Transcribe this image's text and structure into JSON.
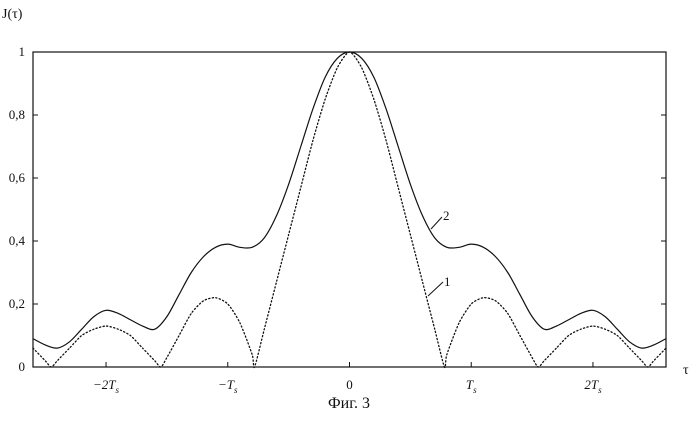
{
  "figure": {
    "caption": "Фиг. 3"
  },
  "chart_data": {
    "type": "line",
    "ylabel": "J(τ)",
    "xlabel": "τ",
    "xlim": [
      -2.6,
      2.6
    ],
    "ylim": [
      0,
      1
    ],
    "x_unit": "T_s",
    "x_ticks": [
      {
        "value": -2,
        "label": "−2T",
        "sub": "s"
      },
      {
        "value": -1,
        "label": "−T",
        "sub": "s"
      },
      {
        "value": 0,
        "label": "0",
        "sub": ""
      },
      {
        "value": 1,
        "label": "T",
        "sub": "s"
      },
      {
        "value": 2,
        "label": "2T",
        "sub": "s"
      }
    ],
    "y_ticks": [
      {
        "value": 0,
        "label": "0"
      },
      {
        "value": 0.2,
        "label": "0,2"
      },
      {
        "value": 0.4,
        "label": "0,4"
      },
      {
        "value": 0.6,
        "label": "0,6"
      },
      {
        "value": 0.8,
        "label": "0,8"
      },
      {
        "value": 1,
        "label": "1"
      }
    ],
    "grid": false,
    "series": [
      {
        "name": "2",
        "style": "solid",
        "x": [
          -2.6,
          -2.5,
          -2.4,
          -2.3,
          -2.2,
          -2.1,
          -2.0,
          -1.9,
          -1.8,
          -1.7,
          -1.6,
          -1.5,
          -1.4,
          -1.3,
          -1.2,
          -1.1,
          -1.0,
          -0.9,
          -0.8,
          -0.7,
          -0.6,
          -0.5,
          -0.4,
          -0.3,
          -0.2,
          -0.1,
          0.0,
          0.1,
          0.2,
          0.3,
          0.4,
          0.5,
          0.6,
          0.7,
          0.8,
          0.9,
          1.0,
          1.1,
          1.2,
          1.3,
          1.4,
          1.5,
          1.6,
          1.7,
          1.8,
          1.9,
          2.0,
          2.1,
          2.2,
          2.3,
          2.4,
          2.5,
          2.6
        ],
        "y": [
          0.09,
          0.07,
          0.06,
          0.08,
          0.12,
          0.16,
          0.18,
          0.17,
          0.15,
          0.13,
          0.12,
          0.16,
          0.23,
          0.3,
          0.35,
          0.38,
          0.39,
          0.38,
          0.38,
          0.41,
          0.48,
          0.58,
          0.7,
          0.82,
          0.92,
          0.98,
          1.0,
          0.98,
          0.92,
          0.82,
          0.7,
          0.58,
          0.48,
          0.41,
          0.38,
          0.38,
          0.39,
          0.38,
          0.35,
          0.3,
          0.23,
          0.16,
          0.12,
          0.13,
          0.15,
          0.17,
          0.18,
          0.16,
          0.12,
          0.08,
          0.06,
          0.07,
          0.09
        ]
      },
      {
        "name": "1",
        "style": "dotted",
        "x": [
          -2.6,
          -2.5,
          -2.45,
          -2.4,
          -2.3,
          -2.2,
          -2.1,
          -2.0,
          -1.9,
          -1.8,
          -1.7,
          -1.6,
          -1.55,
          -1.5,
          -1.4,
          -1.3,
          -1.2,
          -1.1,
          -1.0,
          -0.9,
          -0.8,
          -0.78,
          -0.7,
          -0.6,
          -0.5,
          -0.4,
          -0.3,
          -0.2,
          -0.1,
          0.0,
          0.1,
          0.2,
          0.3,
          0.4,
          0.5,
          0.6,
          0.7,
          0.78,
          0.8,
          0.9,
          1.0,
          1.1,
          1.2,
          1.3,
          1.4,
          1.5,
          1.55,
          1.6,
          1.7,
          1.8,
          1.9,
          2.0,
          2.1,
          2.2,
          2.3,
          2.4,
          2.45,
          2.5,
          2.6
        ],
        "y": [
          0.06,
          0.02,
          0.0,
          0.02,
          0.06,
          0.1,
          0.12,
          0.13,
          0.12,
          0.1,
          0.06,
          0.02,
          0.0,
          0.03,
          0.1,
          0.17,
          0.21,
          0.22,
          0.2,
          0.14,
          0.04,
          0.0,
          0.12,
          0.27,
          0.42,
          0.57,
          0.72,
          0.85,
          0.95,
          1.0,
          0.95,
          0.85,
          0.72,
          0.57,
          0.42,
          0.27,
          0.12,
          0.0,
          0.04,
          0.14,
          0.2,
          0.22,
          0.21,
          0.17,
          0.1,
          0.03,
          0.0,
          0.02,
          0.06,
          0.1,
          0.12,
          0.13,
          0.12,
          0.1,
          0.06,
          0.02,
          0.0,
          0.02,
          0.06
        ]
      }
    ]
  }
}
